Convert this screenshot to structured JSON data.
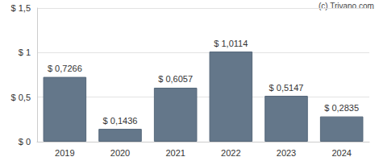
{
  "chart_data": {
    "type": "bar",
    "annotations": [
      "(c) Trivano.com"
    ],
    "categories": [
      "2019",
      "2020",
      "2021",
      "2022",
      "2023",
      "2024"
    ],
    "values": [
      0.7266,
      0.1436,
      0.6057,
      1.0114,
      0.5147,
      0.2835
    ],
    "value_labels": [
      "$ 0,7266",
      "$ 0,1436",
      "$ 0,6057",
      "$ 1,0114",
      "$ 0,5147",
      "$ 0,2835"
    ],
    "color": "#64778a",
    "ylim": [
      0,
      1.5
    ],
    "yticks": [
      {
        "value": 0,
        "label": "$ 0"
      },
      {
        "value": 0.5,
        "label": "$ 0,5"
      },
      {
        "value": 1,
        "label": "$ 1"
      },
      {
        "value": 1.5,
        "label": "$ 1,5"
      }
    ],
    "grid": true,
    "data_labels": true
  }
}
